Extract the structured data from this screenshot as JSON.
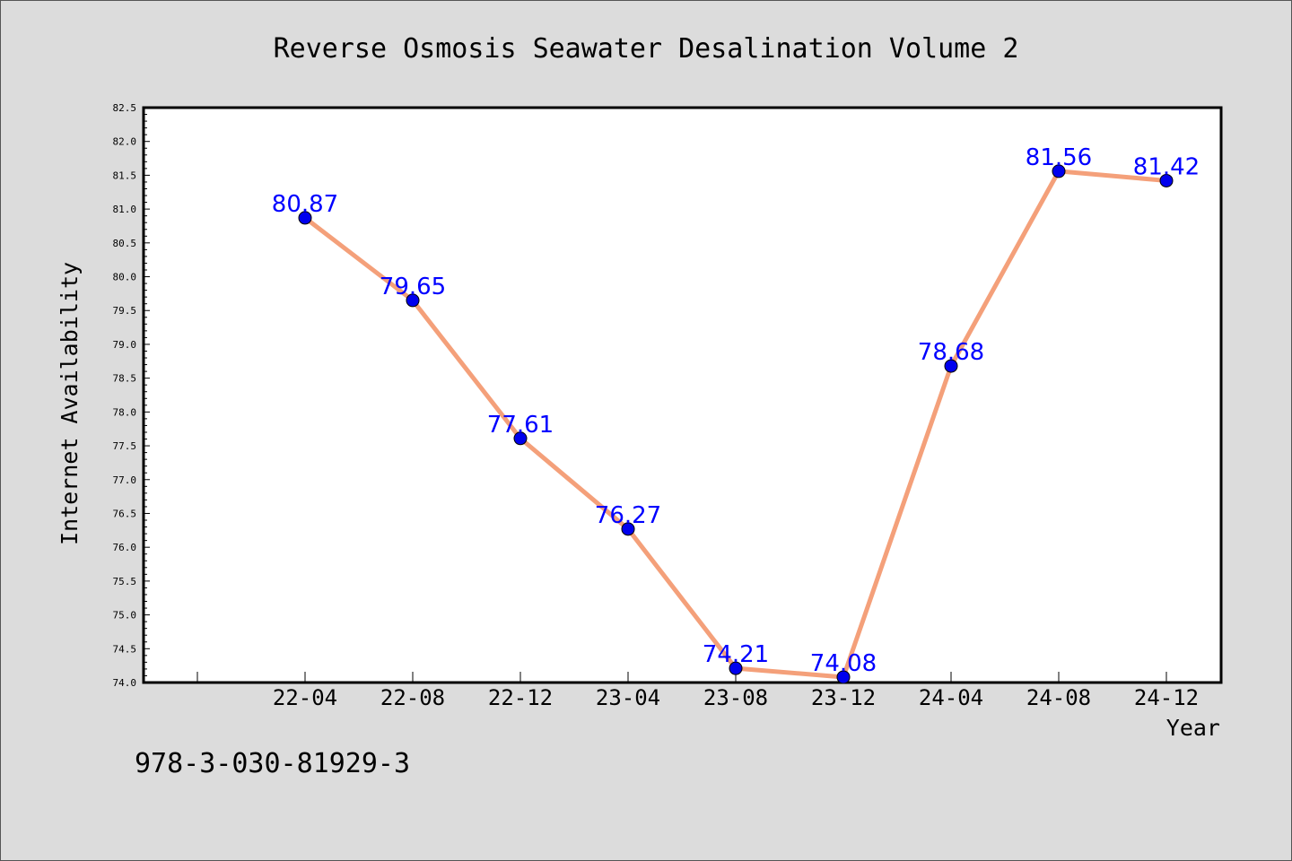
{
  "isbn": "978-3-030-81929-3",
  "chart_data": {
    "type": "line",
    "title": "Reverse Osmosis Seawater Desalination Volume 2",
    "xlabel": "Year",
    "ylabel": "Internet Availability",
    "categories": [
      "22-04",
      "22-08",
      "22-12",
      "23-04",
      "23-08",
      "23-12",
      "24-04",
      "24-08",
      "24-12"
    ],
    "values": [
      80.87,
      79.65,
      77.61,
      76.27,
      74.21,
      74.08,
      78.68,
      81.56,
      81.42
    ],
    "data_labels": [
      "80.87",
      "79.65",
      "77.61",
      "76.27",
      "74.21",
      "74.08",
      "78.68",
      "81.56",
      "81.42"
    ],
    "y_ticks": [
      "74.0",
      "74.5",
      "75.0",
      "75.5",
      "76.0",
      "76.5",
      "77.0",
      "77.5",
      "78.0",
      "78.5",
      "79.0",
      "79.5",
      "80.0",
      "80.5",
      "81.0",
      "81.5",
      "82.0",
      "82.5"
    ],
    "ylim": [
      74.0,
      82.5
    ],
    "grid": false,
    "colors": {
      "line": "#f4a07a",
      "marker": "#0000ee",
      "label": "#0000ff",
      "plot_bg": "#ffffff"
    }
  }
}
